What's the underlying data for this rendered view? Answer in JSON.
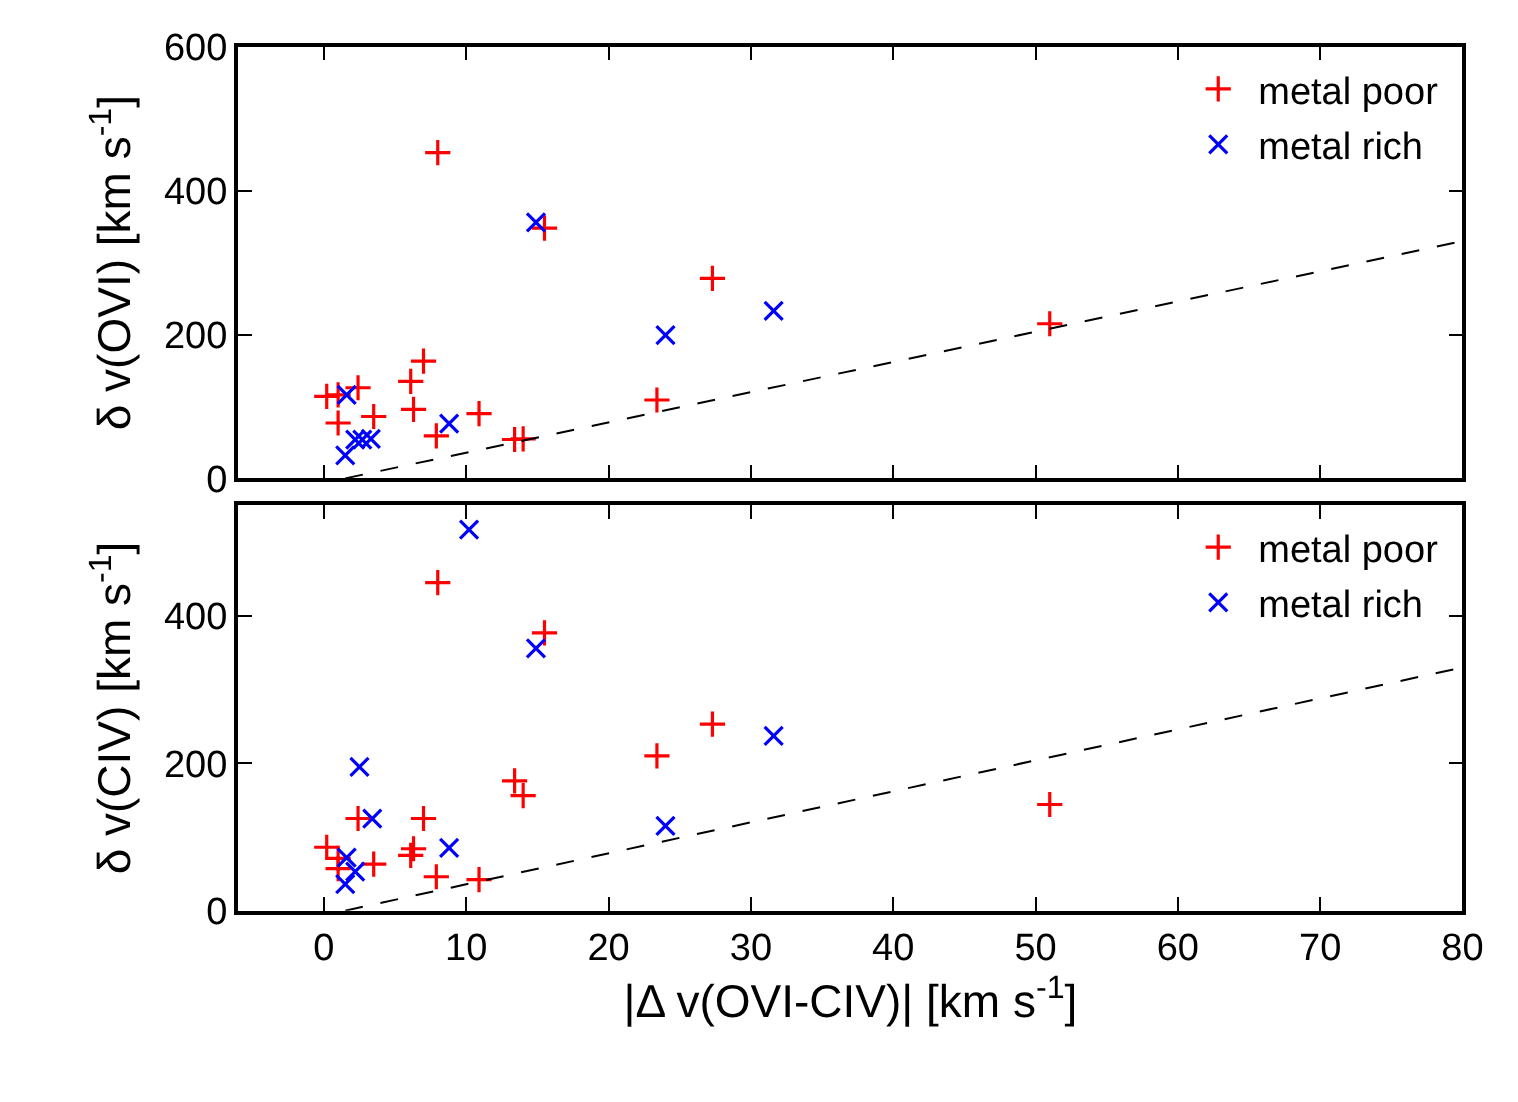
{
  "chart_data": [
    {
      "type": "scatter",
      "ylabel": "δ v(OVI) [km s$^{-1}$]",
      "xlim": [
        -6,
        80
      ],
      "xticks": [
        0,
        10,
        20,
        30,
        40,
        50,
        60,
        70,
        80
      ],
      "ylim": [
        0,
        600
      ],
      "yticks": [
        0,
        200,
        400,
        600
      ],
      "tick_labels": "y",
      "legend": "top right",
      "series": [
        {
          "name": "metal poor",
          "color": "#ff0000",
          "marker": "cross",
          "x": [
            0.2,
            1.0,
            2.4,
            1.0,
            3.5,
            6.1,
            7.0,
            6.3,
            8.0,
            7.9,
            10.9,
            13.4,
            14.0,
            15.5,
            23.4,
            27.3,
            51.0
          ],
          "values": [
            114,
            116,
            126,
            77,
            86,
            135,
            163,
            96,
            453,
            59,
            90,
            54,
            55,
            348,
            109,
            278,
            215
          ]
        },
        {
          "name": "metal rich",
          "color": "#0000ff",
          "marker": "x",
          "x": [
            1.6,
            1.5,
            2.2,
            2.7,
            3.3,
            8.8,
            14.9,
            24.0,
            31.6
          ],
          "values": [
            116,
            32,
            54,
            54,
            55,
            76,
            356,
            199,
            233
          ]
        },
        {
          "type": "line",
          "color": "#000000",
          "line_style": "dashed",
          "marker": "none",
          "x": [
            1.5,
            80
          ],
          "values": [
            0,
            330
          ]
        }
      ]
    },
    {
      "type": "scatter",
      "ylabel": "δ v(CIV) [km s$^{-1}$]",
      "xlabel": "|Δ v(OVI-CIV)| [km s$^{-1}$]",
      "xlim": [
        -6,
        80
      ],
      "xticks": [
        0,
        10,
        20,
        30,
        40,
        50,
        60,
        70,
        80
      ],
      "ylim": [
        0,
        550
      ],
      "yticks": [
        0,
        200,
        400
      ],
      "legend": "top right",
      "series": [
        {
          "name": "metal poor",
          "color": "#ff0000",
          "marker": "cross",
          "x": [
            0.2,
            1.0,
            1.0,
            2.4,
            3.5,
            6.1,
            6.3,
            7.0,
            8.0,
            7.9,
            10.9,
            13.4,
            14.0,
            15.5,
            23.4,
            27.3,
            51.0
          ],
          "values": [
            86,
            71,
            57,
            125,
            63,
            75,
            84,
            125,
            445,
            46,
            42,
            176,
            156,
            377,
            210,
            253,
            144
          ]
        },
        {
          "name": "metal rich",
          "color": "#0000ff",
          "marker": "x",
          "x": [
            1.6,
            1.5,
            2.2,
            2.5,
            3.4,
            8.8,
            10.2,
            14.9,
            24.0,
            31.6
          ],
          "values": [
            72,
            36,
            53,
            195,
            125,
            85,
            517,
            356,
            115,
            237
          ]
        },
        {
          "type": "line",
          "color": "#000000",
          "line_style": "dashed",
          "marker": "none",
          "x": [
            1.5,
            80
          ],
          "values": [
            0,
            330
          ]
        }
      ]
    }
  ]
}
